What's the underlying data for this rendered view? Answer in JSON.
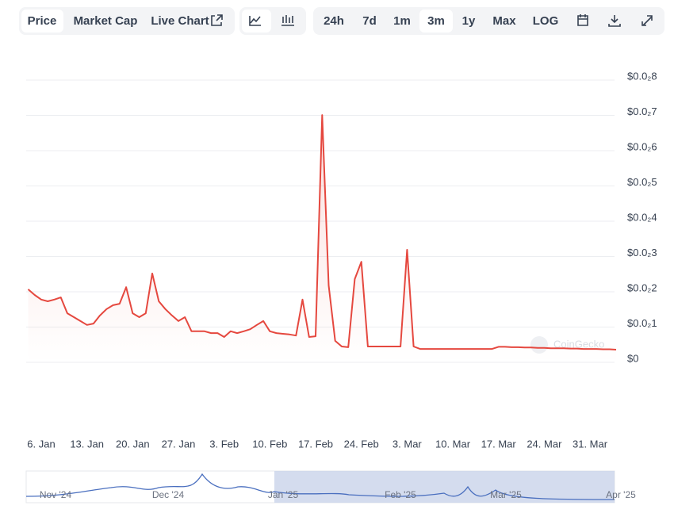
{
  "toolbar": {
    "views": [
      "Price",
      "Market Cap",
      "Live Chart"
    ],
    "ranges": [
      "24h",
      "7d",
      "1m",
      "3m",
      "1y",
      "Max",
      "LOG"
    ]
  },
  "watermark": "CoinGecko",
  "chart_data": {
    "type": "line",
    "color": "#e5483f",
    "grid": true,
    "x": [
      "4. Jan",
      "5. Jan",
      "6. Jan",
      "7. Jan",
      "8. Jan",
      "9. Jan",
      "10. Jan",
      "11. Jan",
      "12. Jan",
      "13. Jan",
      "14. Jan",
      "15. Jan",
      "16. Jan",
      "17. Jan",
      "18. Jan",
      "19. Jan",
      "20. Jan",
      "21. Jan",
      "22. Jan",
      "23. Jan",
      "24. Jan",
      "25. Jan",
      "26. Jan",
      "27. Jan",
      "28. Jan",
      "29. Jan",
      "30. Jan",
      "31. Jan",
      "1. Feb",
      "2. Feb",
      "3. Feb",
      "4. Feb",
      "5. Feb",
      "6. Feb",
      "7. Feb",
      "8. Feb",
      "9. Feb",
      "10. Feb",
      "11. Feb",
      "12. Feb",
      "13. Feb",
      "14. Feb",
      "15. Feb",
      "16. Feb",
      "17. Feb",
      "18. Feb",
      "19. Feb",
      "20. Feb",
      "21. Feb",
      "22. Feb",
      "23. Feb",
      "24. Feb",
      "25. Feb",
      "26. Feb",
      "27. Feb",
      "28. Feb",
      "1. Mar",
      "2. Mar",
      "3. Mar",
      "4. Mar",
      "5. Mar",
      "6. Mar",
      "7. Mar",
      "8. Mar",
      "9. Mar",
      "10. Mar",
      "11. Mar",
      "12. Mar",
      "13. Mar",
      "14. Mar",
      "15. Mar",
      "16. Mar",
      "17. Mar",
      "18. Mar",
      "19. Mar",
      "20. Mar",
      "21. Mar",
      "22. Mar",
      "23. Mar",
      "24. Mar",
      "25. Mar",
      "26. Mar",
      "27. Mar",
      "28. Mar",
      "29. Mar",
      "30. Mar",
      "31. Mar",
      "1. Apr",
      "2. Apr",
      "3. Apr",
      "4. Apr"
    ],
    "series": [
      {
        "name": "Price",
        "values": [
          0.00207,
          0.00191,
          0.00178,
          0.00173,
          0.00178,
          0.00184,
          0.00139,
          0.00128,
          0.00117,
          0.00106,
          0.0011,
          0.00133,
          0.00151,
          0.00162,
          0.00166,
          0.00213,
          0.00139,
          0.00128,
          0.00139,
          0.00252,
          0.00173,
          0.00151,
          0.00133,
          0.00117,
          0.00128,
          0.00088,
          0.00088,
          0.00088,
          0.00083,
          0.00083,
          0.00072,
          0.00088,
          0.00083,
          0.00088,
          0.00094,
          0.00106,
          0.00117,
          0.00088,
          0.00083,
          0.00081,
          0.00079,
          0.00076,
          0.00178,
          0.00072,
          0.00074,
          0.00701,
          0.00218,
          0.00061,
          0.00045,
          0.00043,
          0.00236,
          0.00285,
          0.00045,
          0.00045,
          0.00045,
          0.00045,
          0.00045,
          0.00045,
          0.00319,
          0.00045,
          0.00038,
          0.00038,
          0.00038,
          0.00038,
          0.00038,
          0.00038,
          0.00038,
          0.00038,
          0.00038,
          0.00038,
          0.00038,
          0.00038,
          0.00044,
          0.00044,
          0.00043,
          0.00043,
          0.00042,
          0.00042,
          0.00041,
          0.00041,
          0.0004,
          0.0004,
          0.0004,
          0.00039,
          0.00039,
          0.00038,
          0.00038,
          0.00038,
          0.00037,
          0.00037,
          0.00036
        ]
      }
    ],
    "xticks": [
      "6. Jan",
      "13. Jan",
      "20. Jan",
      "27. Jan",
      "3. Feb",
      "10. Feb",
      "17. Feb",
      "24. Feb",
      "3. Mar",
      "10. Mar",
      "17. Mar",
      "24. Mar",
      "31. Mar"
    ],
    "ylim": [
      0,
      0.008
    ],
    "yticks": [
      {
        "value": 0,
        "label": "$0"
      },
      {
        "value": 0.001,
        "label": "$0.0₂1"
      },
      {
        "value": 0.002,
        "label": "$0.0₂2"
      },
      {
        "value": 0.003,
        "label": "$0.0₂3"
      },
      {
        "value": 0.004,
        "label": "$0.0₂4"
      },
      {
        "value": 0.005,
        "label": "$0.0₂5"
      },
      {
        "value": 0.006,
        "label": "$0.0₂6"
      },
      {
        "value": 0.007,
        "label": "$0.0₂7"
      },
      {
        "value": 0.008,
        "label": "$0.0₂8"
      }
    ]
  },
  "navigator": {
    "labels": [
      "Nov '24",
      "Dec '24",
      "Jan '25",
      "Feb '25",
      "Mar '25",
      "Apr '25"
    ]
  }
}
